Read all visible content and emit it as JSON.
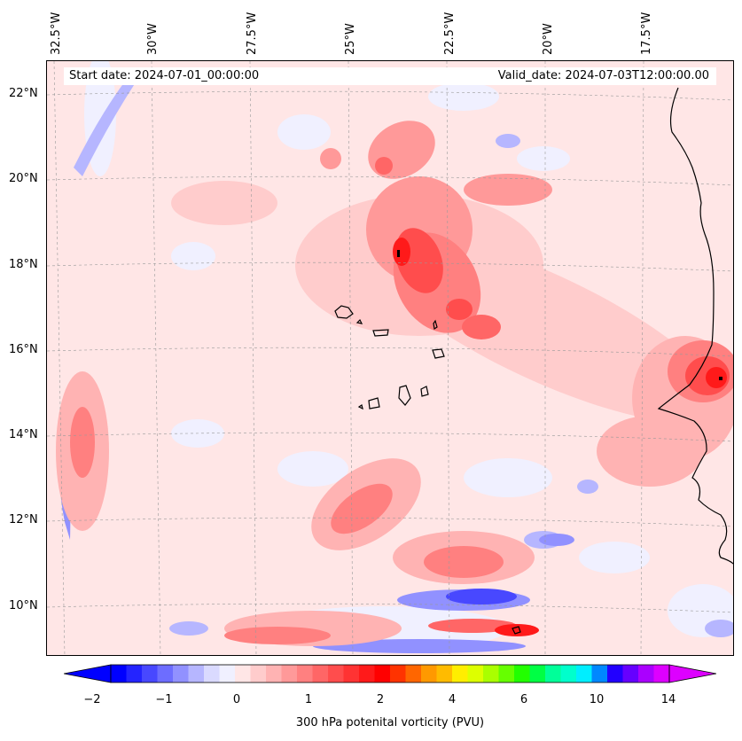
{
  "map": {
    "start_date": "Start date: 2024-07-01_00:00:00",
    "valid_date": "Valid_date: 2024-07-03T12:00:00.00",
    "lon_labels": [
      "32.5°W",
      "30°W",
      "27.5°W",
      "25°W",
      "22.5°W",
      "20°W",
      "17.5°W"
    ],
    "lat_labels": [
      "22°N",
      "20°N",
      "18°N",
      "16°N",
      "14°N",
      "12°N",
      "10°N"
    ],
    "colorbar": {
      "label": "300 hPa potenital vorticity (PVU)",
      "ticks": [
        "−2",
        "−1",
        "0",
        "1",
        "2",
        "4",
        "6",
        "10",
        "14"
      ],
      "colors": [
        "#0000ff",
        "#2424ff",
        "#4848ff",
        "#6d6dff",
        "#9191ff",
        "#b6b6ff",
        "#dadaff",
        "#f0f0ff",
        "#ffe6e6",
        "#ffcccc",
        "#ffb3b3",
        "#ff9999",
        "#ff8080",
        "#ff6666",
        "#ff4d4d",
        "#ff3333",
        "#ff1a1a",
        "#ff0000",
        "#ff3300",
        "#ff6600",
        "#ff9900",
        "#ffbb00",
        "#ffee00",
        "#ddff00",
        "#aaff00",
        "#66ff00",
        "#22ff00",
        "#00ff44",
        "#00ff99",
        "#00ffcc",
        "#00eeff",
        "#0088ff",
        "#2200ff",
        "#6600ff",
        "#aa00ff",
        "#dd00ff"
      ]
    }
  }
}
